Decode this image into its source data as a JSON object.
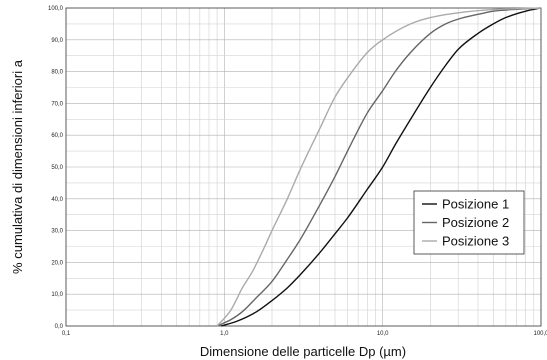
{
  "chart_data": {
    "type": "line",
    "title": "",
    "xlabel": "Dimensione delle particelle Dp (µm)",
    "ylabel": "% cumulativa di dimensioni inferiori a",
    "x_scale": "log",
    "xlim": [
      0.1,
      100
    ],
    "ylim": [
      0,
      100
    ],
    "x_ticks": [
      0.1,
      1,
      10,
      100
    ],
    "x_tick_labels": [
      "0,1",
      "1,0",
      "10,0",
      "100,0"
    ],
    "y_ticks": [
      0,
      10,
      20,
      30,
      40,
      50,
      60,
      70,
      80,
      90,
      100
    ],
    "y_tick_labels": [
      "0,0",
      "10,0",
      "20,0",
      "30,0",
      "40,0",
      "50,0",
      "60,0",
      "70,0",
      "80,0",
      "90,0",
      "100,0"
    ],
    "grid": true,
    "legend": "center-right",
    "series": [
      {
        "name": "Posizione 1",
        "color": "#111111",
        "x": [
          0.95,
          1.2,
          1.6,
          2,
          2.5,
          3,
          4,
          5,
          6,
          8,
          10,
          12,
          15,
          20,
          25,
          30,
          40,
          50,
          60,
          80,
          100
        ],
        "y": [
          0,
          1.5,
          4.5,
          8,
          12,
          16,
          23,
          29,
          34,
          43,
          50,
          57,
          65,
          75,
          82,
          87,
          92,
          95,
          97,
          99,
          100
        ]
      },
      {
        "name": "Posizione 2",
        "color": "#666666",
        "x": [
          0.9,
          1.1,
          1.3,
          1.6,
          2,
          2.5,
          3,
          4,
          5,
          6,
          8,
          10,
          12,
          15,
          20,
          25,
          30,
          40,
          50,
          70,
          100
        ],
        "y": [
          0,
          2,
          4.5,
          9,
          14,
          21,
          27,
          38,
          47,
          55,
          67,
          74,
          80,
          86,
          92,
          95,
          96.5,
          98,
          99,
          99.6,
          100
        ]
      },
      {
        "name": "Posizione 3",
        "color": "#aaaaaa",
        "x": [
          0.9,
          1.1,
          1.3,
          1.5,
          1.8,
          2,
          2.5,
          3,
          4,
          5,
          6,
          8,
          10,
          15,
          20,
          30,
          50,
          100
        ],
        "y": [
          0,
          5,
          12,
          17,
          25,
          30,
          40,
          49,
          62,
          72,
          78,
          86,
          90,
          95,
          97,
          98.5,
          99.5,
          100
        ]
      }
    ]
  }
}
